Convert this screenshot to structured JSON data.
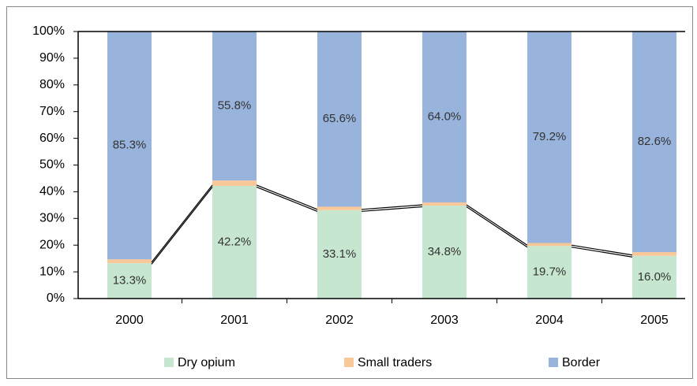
{
  "chart_data": {
    "type": "stacked_bar",
    "categories": [
      "2000",
      "2001",
      "2002",
      "2003",
      "2004",
      "2005"
    ],
    "series": [
      {
        "name": "Dry opium",
        "color": "#c6e6cf",
        "values": [
          13.3,
          42.2,
          33.1,
          34.8,
          19.7,
          16.0
        ],
        "value_labels": [
          "13.3%",
          "42.2%",
          "33.1%",
          "34.8%",
          "19.7%",
          "16.0%"
        ]
      },
      {
        "name": "Small traders",
        "color": "#f9c898",
        "values": [
          1.4,
          2.0,
          1.3,
          1.2,
          1.1,
          1.4
        ]
      },
      {
        "name": "Border",
        "color": "#98b4dc",
        "values": [
          85.3,
          55.8,
          65.6,
          64.0,
          79.2,
          82.6
        ],
        "value_labels": [
          "85.3%",
          "55.8%",
          "65.6%",
          "64.0%",
          "79.2%",
          "82.6%"
        ]
      }
    ],
    "ylim": [
      0,
      100
    ],
    "yticks": [
      {
        "value": 0,
        "label": "0%"
      },
      {
        "value": 10,
        "label": "10%"
      },
      {
        "value": 20,
        "label": "20%"
      },
      {
        "value": 30,
        "label": "30%"
      },
      {
        "value": 40,
        "label": "40%"
      },
      {
        "value": 50,
        "label": "50%"
      },
      {
        "value": 60,
        "label": "60%"
      },
      {
        "value": 70,
        "label": "70%"
      },
      {
        "value": 80,
        "label": "80%"
      },
      {
        "value": 90,
        "label": "90%"
      },
      {
        "value": 100,
        "label": "100%"
      }
    ],
    "legend": "bottom"
  }
}
